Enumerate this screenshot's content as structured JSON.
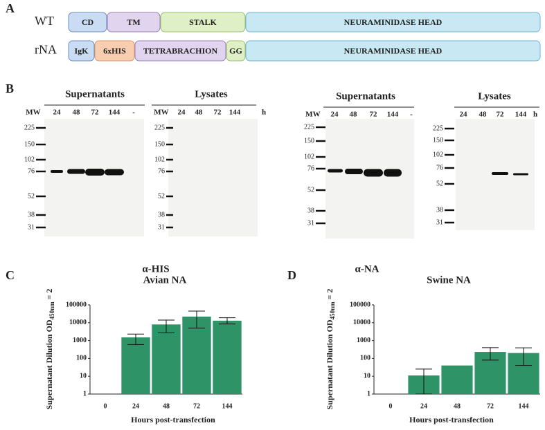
{
  "panel_a": {
    "label": "A",
    "rows": [
      {
        "name": "WT",
        "domains": [
          "CD",
          "TM",
          "STALK",
          "NEURAMINIDASE HEAD"
        ]
      },
      {
        "name": "rNA",
        "domains": [
          "IgK",
          "6xHIS",
          "TETRABRACHION",
          "GG",
          "NEURAMINIDASE HEAD"
        ]
      }
    ]
  },
  "panel_b": {
    "label": "B",
    "blots": [
      {
        "title": "Supernatants",
        "mw_header": "MW",
        "lanes": [
          "24",
          "48",
          "72",
          "144",
          "-"
        ],
        "mw": [
          "225",
          "150",
          "102",
          "76",
          "52",
          "38",
          "31"
        ]
      },
      {
        "title": "Lysates",
        "mw_header": "MW",
        "lanes": [
          "24",
          "48",
          "72",
          "144"
        ],
        "unit": "h",
        "mw": [
          "225",
          "150",
          "102",
          "76",
          "52",
          "38",
          "31"
        ]
      },
      {
        "title": "Supernatants",
        "mw_header": "MW",
        "lanes": [
          "24",
          "48",
          "72",
          "144",
          "-"
        ],
        "mw": [
          "225",
          "150",
          "102",
          "76",
          "52",
          "38",
          "31"
        ]
      },
      {
        "title": "Lysates",
        "lanes": [
          "24",
          "48",
          "72",
          "144"
        ],
        "unit": "h",
        "mw": [
          "225",
          "150",
          "102",
          "76",
          "52",
          "38",
          "31"
        ]
      }
    ],
    "antibodies": [
      "α-HIS",
      "α-NA"
    ]
  },
  "chart_data": [
    {
      "type": "bar",
      "panel": "C",
      "title": "Avian NA",
      "x_label": "Hours post-transfection",
      "y_label": {
        "text": "Supernatant Dilution OD",
        "sub": "450nm",
        "end": "= 2"
      },
      "categories": [
        "0",
        "24",
        "48",
        "72",
        "144"
      ],
      "values": [
        null,
        1500,
        8000,
        22000,
        13000
      ],
      "error_low": [
        null,
        600,
        2700,
        5000,
        8500
      ],
      "error_high": [
        null,
        2300,
        14000,
        45000,
        19000
      ],
      "color": "#2e9468",
      "log_scale": true,
      "ylim": [
        1,
        100000
      ],
      "yticks": [
        1,
        10,
        100,
        1000,
        10000,
        100000
      ]
    },
    {
      "type": "bar",
      "panel": "D",
      "title": "Swine NA",
      "x_label": "Hours post-transfection",
      "y_label": {
        "text": "Supernatant Dilution OD",
        "sub": "450nm",
        "end": "= 2"
      },
      "categories": [
        "0",
        "24",
        "48",
        "72",
        "144"
      ],
      "values": [
        null,
        11,
        40,
        230,
        200
      ],
      "error_low": [
        null,
        1,
        null,
        80,
        40
      ],
      "error_high": [
        null,
        25,
        null,
        400,
        390
      ],
      "color": "#2e9468",
      "log_scale": true,
      "ylim": [
        1,
        100000
      ],
      "yticks": [
        1,
        10,
        100,
        1000,
        10000,
        100000
      ]
    }
  ]
}
